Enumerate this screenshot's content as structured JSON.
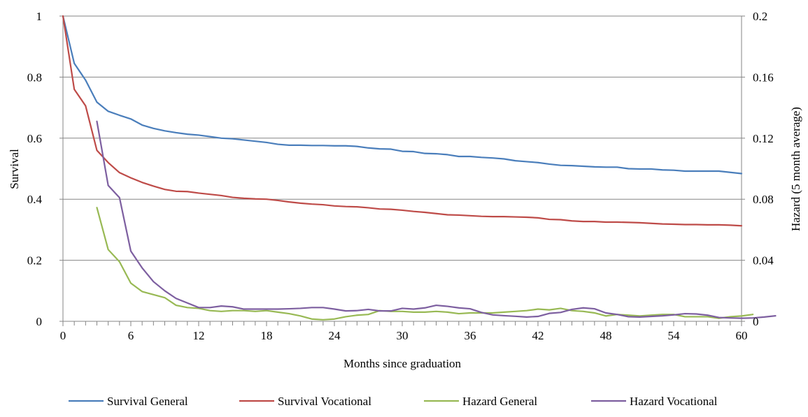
{
  "chart_data": {
    "type": "line",
    "title": "",
    "xlabel": "Months since graduation",
    "ylabel": "Survival",
    "y2label": "Hazard (5 month average)",
    "xlim": [
      0,
      60
    ],
    "ylim": [
      0,
      1
    ],
    "y2lim": [
      0,
      0.2
    ],
    "x_ticks": [
      0,
      6,
      12,
      18,
      24,
      30,
      36,
      42,
      48,
      54,
      60
    ],
    "x_tick_labels": [
      "0",
      "6",
      "12",
      "18",
      "24",
      "30",
      "36",
      "42",
      "48",
      "54",
      "60"
    ],
    "y_ticks": [
      0,
      0.2,
      0.4,
      0.6,
      0.8,
      1
    ],
    "y_tick_labels": [
      "0",
      "0.2",
      "0.4",
      "0.6",
      "0.8",
      "1"
    ],
    "y2_ticks": [
      0,
      0.04,
      0.08,
      0.12,
      0.16,
      0.2
    ],
    "y2_tick_labels": [
      "0",
      "0.04",
      "0.08",
      "0.12",
      "0.16",
      "0.2"
    ],
    "grid": true,
    "legend_position": "bottom",
    "series": [
      {
        "name": "Survival General",
        "axis": "left",
        "color": "#4a7ebb",
        "x_start": 0,
        "values": [
          1.0,
          0.845,
          0.79,
          0.718,
          0.688,
          0.675,
          0.663,
          0.643,
          0.632,
          0.624,
          0.618,
          0.613,
          0.61,
          0.605,
          0.6,
          0.598,
          0.594,
          0.59,
          0.586,
          0.58,
          0.577,
          0.577,
          0.576,
          0.576,
          0.575,
          0.575,
          0.573,
          0.568,
          0.565,
          0.564,
          0.557,
          0.556,
          0.55,
          0.549,
          0.546,
          0.54,
          0.54,
          0.537,
          0.535,
          0.532,
          0.526,
          0.523,
          0.52,
          0.515,
          0.511,
          0.51,
          0.508,
          0.506,
          0.505,
          0.505,
          0.5,
          0.499,
          0.499,
          0.496,
          0.495,
          0.492,
          0.492,
          0.492,
          0.492,
          0.488,
          0.484
        ]
      },
      {
        "name": "Survival Vocational",
        "axis": "left",
        "color": "#be4b48",
        "x_start": 0,
        "values": [
          1.0,
          0.76,
          0.706,
          0.56,
          0.52,
          0.487,
          0.47,
          0.455,
          0.443,
          0.432,
          0.426,
          0.425,
          0.42,
          0.416,
          0.412,
          0.406,
          0.403,
          0.401,
          0.4,
          0.396,
          0.391,
          0.387,
          0.384,
          0.382,
          0.378,
          0.376,
          0.375,
          0.372,
          0.368,
          0.367,
          0.364,
          0.36,
          0.357,
          0.353,
          0.349,
          0.348,
          0.346,
          0.344,
          0.343,
          0.343,
          0.342,
          0.341,
          0.339,
          0.334,
          0.333,
          0.329,
          0.327,
          0.327,
          0.325,
          0.325,
          0.324,
          0.323,
          0.321,
          0.319,
          0.318,
          0.317,
          0.317,
          0.316,
          0.316,
          0.315,
          0.313
        ]
      },
      {
        "name": "Hazard General",
        "axis": "right",
        "color": "#98b954",
        "x_start": 3,
        "values": [
          0.0745,
          0.047,
          0.039,
          0.025,
          0.0195,
          0.0175,
          0.0155,
          0.0105,
          0.009,
          0.0085,
          0.007,
          0.0065,
          0.007,
          0.007,
          0.0065,
          0.007,
          0.006,
          0.005,
          0.0035,
          0.0015,
          0.001,
          0.0015,
          0.003,
          0.004,
          0.0045,
          0.007,
          0.0065,
          0.0065,
          0.006,
          0.006,
          0.0065,
          0.006,
          0.005,
          0.0055,
          0.0055,
          0.0055,
          0.006,
          0.0065,
          0.007,
          0.008,
          0.0075,
          0.0085,
          0.007,
          0.0065,
          0.0055,
          0.0035,
          0.0045,
          0.004,
          0.0035,
          0.004,
          0.0045,
          0.0045,
          0.003,
          0.003,
          0.003,
          0.002,
          0.003,
          0.0035,
          0.0045
        ]
      },
      {
        "name": "Hazard Vocational",
        "axis": "right",
        "color": "#7d5fa0",
        "x_start": 3,
        "values": [
          0.131,
          0.089,
          0.081,
          0.046,
          0.035,
          0.026,
          0.02,
          0.015,
          0.012,
          0.009,
          0.009,
          0.01,
          0.0095,
          0.008,
          0.008,
          0.008,
          0.008,
          0.0082,
          0.0085,
          0.009,
          0.009,
          0.008,
          0.0068,
          0.007,
          0.0078,
          0.0068,
          0.0068,
          0.0085,
          0.008,
          0.0088,
          0.0105,
          0.0098,
          0.0088,
          0.0082,
          0.0058,
          0.0042,
          0.0037,
          0.0033,
          0.0028,
          0.0032,
          0.0052,
          0.0058,
          0.0078,
          0.0088,
          0.0082,
          0.0055,
          0.0045,
          0.003,
          0.0028,
          0.0032,
          0.0036,
          0.0042,
          0.005,
          0.0048,
          0.004,
          0.0025,
          0.0022,
          0.002,
          0.0022,
          0.0028,
          0.0036
        ]
      }
    ]
  }
}
